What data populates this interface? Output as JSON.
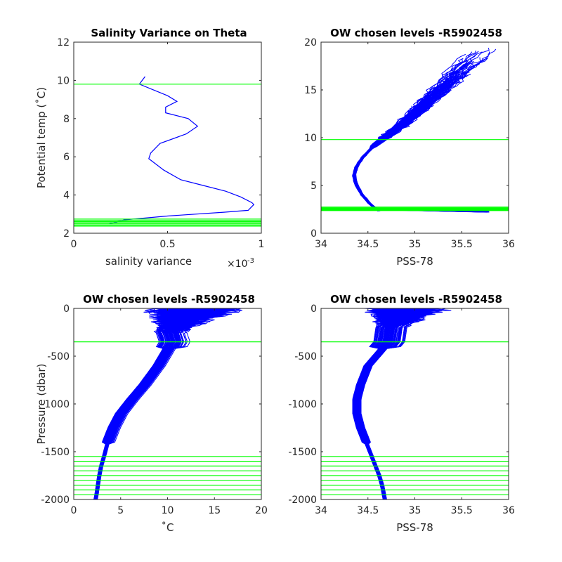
{
  "colors": {
    "profile": "#0000ff",
    "level": "#00ff00",
    "axis": "#262626",
    "background": "#ffffff"
  },
  "chart_data": [
    {
      "type": "line",
      "title": "Salinity Variance on Theta",
      "xlabel": "salinity variance",
      "x_exponent": "×10",
      "x_exponent_power": "-3",
      "ylabel": "Potential temp (˚C)",
      "xlim": [
        0,
        1
      ],
      "ylim": [
        2,
        12
      ],
      "xticks": [
        "0",
        "0.5",
        "1"
      ],
      "yticks": [
        "2",
        "4",
        "6",
        "8",
        "10",
        "12"
      ],
      "grid": false,
      "series": [
        {
          "x": [
            0.38,
            0.35,
            0.5,
            0.55,
            0.49,
            0.49,
            0.61,
            0.66,
            0.6,
            0.46,
            0.41,
            0.4,
            0.48,
            0.57,
            0.69,
            0.81,
            0.89,
            0.95,
            0.96,
            0.93,
            0.8,
            0.5,
            0.27,
            0.19
          ],
          "y": [
            10.2,
            9.8,
            9.2,
            8.9,
            8.6,
            8.3,
            8.0,
            7.6,
            7.2,
            6.7,
            6.2,
            5.9,
            5.3,
            4.8,
            4.5,
            4.2,
            3.9,
            3.6,
            3.5,
            3.2,
            3.1,
            2.9,
            2.7,
            2.5
          ]
        }
      ],
      "levels_y": [
        9.8,
        2.74,
        2.67,
        2.61,
        2.55,
        2.49,
        2.43,
        2.37
      ]
    },
    {
      "type": "line",
      "title": "OW chosen levels -R5902458",
      "xlabel": "PSS-78",
      "ylabel": "",
      "xlim": [
        34,
        36
      ],
      "ylim": [
        0,
        20
      ],
      "xticks": [
        "34",
        "34.5",
        "35",
        "35.5",
        "36"
      ],
      "yticks": [
        "0",
        "5",
        "10",
        "15",
        "20"
      ],
      "grid": false,
      "profile_mean": {
        "salinity": [
          34.62,
          34.53,
          34.44,
          34.38,
          34.35,
          34.38,
          34.45,
          34.55,
          34.68,
          34.82,
          35.0,
          35.22,
          35.48,
          35.78
        ],
        "theta": [
          2.3,
          3.0,
          4.0,
          5.0,
          6.0,
          7.0,
          8.0,
          9.0,
          10.0,
          11.0,
          12.5,
          14.5,
          17.0,
          19.5
        ]
      },
      "levels_y": [
        9.8,
        2.74,
        2.67,
        2.61,
        2.55,
        2.49,
        2.43,
        2.37
      ]
    },
    {
      "type": "line",
      "title": "OW chosen levels -R5902458",
      "xlabel": "˚C",
      "ylabel": "Pressure (dbar)",
      "xlim": [
        0,
        20
      ],
      "ylim": [
        -2000,
        0
      ],
      "xticks": [
        "0",
        "5",
        "10",
        "15",
        "20"
      ],
      "yticks": [
        "-2000",
        "-1500",
        "-1000",
        "-500",
        "0"
      ],
      "grid": false,
      "profile_mean": {
        "temperature": [
          9.6,
          9.8,
          10.5,
          9.0,
          7.5,
          6.2,
          5.0,
          4.2,
          3.6,
          3.2,
          2.9,
          2.7,
          2.55,
          2.4,
          2.3
        ],
        "pressure": [
          0,
          -150,
          -350,
          -600,
          -800,
          -950,
          -1100,
          -1250,
          -1400,
          -1550,
          -1650,
          -1750,
          -1850,
          -1950,
          -2000
        ]
      },
      "levels_y": [
        -350,
        -1550,
        -1600,
        -1650,
        -1700,
        -1750,
        -1800,
        -1850,
        -1900,
        -1950
      ]
    },
    {
      "type": "line",
      "title": "OW chosen levels -R5902458",
      "xlabel": "PSS-78",
      "ylabel": "",
      "xlim": [
        34,
        36
      ],
      "ylim": [
        -2000,
        0
      ],
      "xticks": [
        "34",
        "34.5",
        "35",
        "35.5",
        "36"
      ],
      "yticks": [
        "-2000",
        "-1500",
        "-1000",
        "-500",
        "0"
      ],
      "grid": false,
      "profile_mean": {
        "salinity": [
          34.72,
          34.75,
          34.72,
          34.5,
          34.42,
          34.38,
          34.38,
          34.42,
          34.48,
          34.54,
          34.58,
          34.62,
          34.65,
          34.67,
          34.68
        ],
        "pressure": [
          0,
          -150,
          -350,
          -600,
          -800,
          -950,
          -1100,
          -1250,
          -1400,
          -1550,
          -1650,
          -1750,
          -1850,
          -1950,
          -2000
        ]
      },
      "levels_y": [
        -350,
        -1550,
        -1600,
        -1650,
        -1700,
        -1750,
        -1800,
        -1850,
        -1900,
        -1950
      ]
    }
  ]
}
